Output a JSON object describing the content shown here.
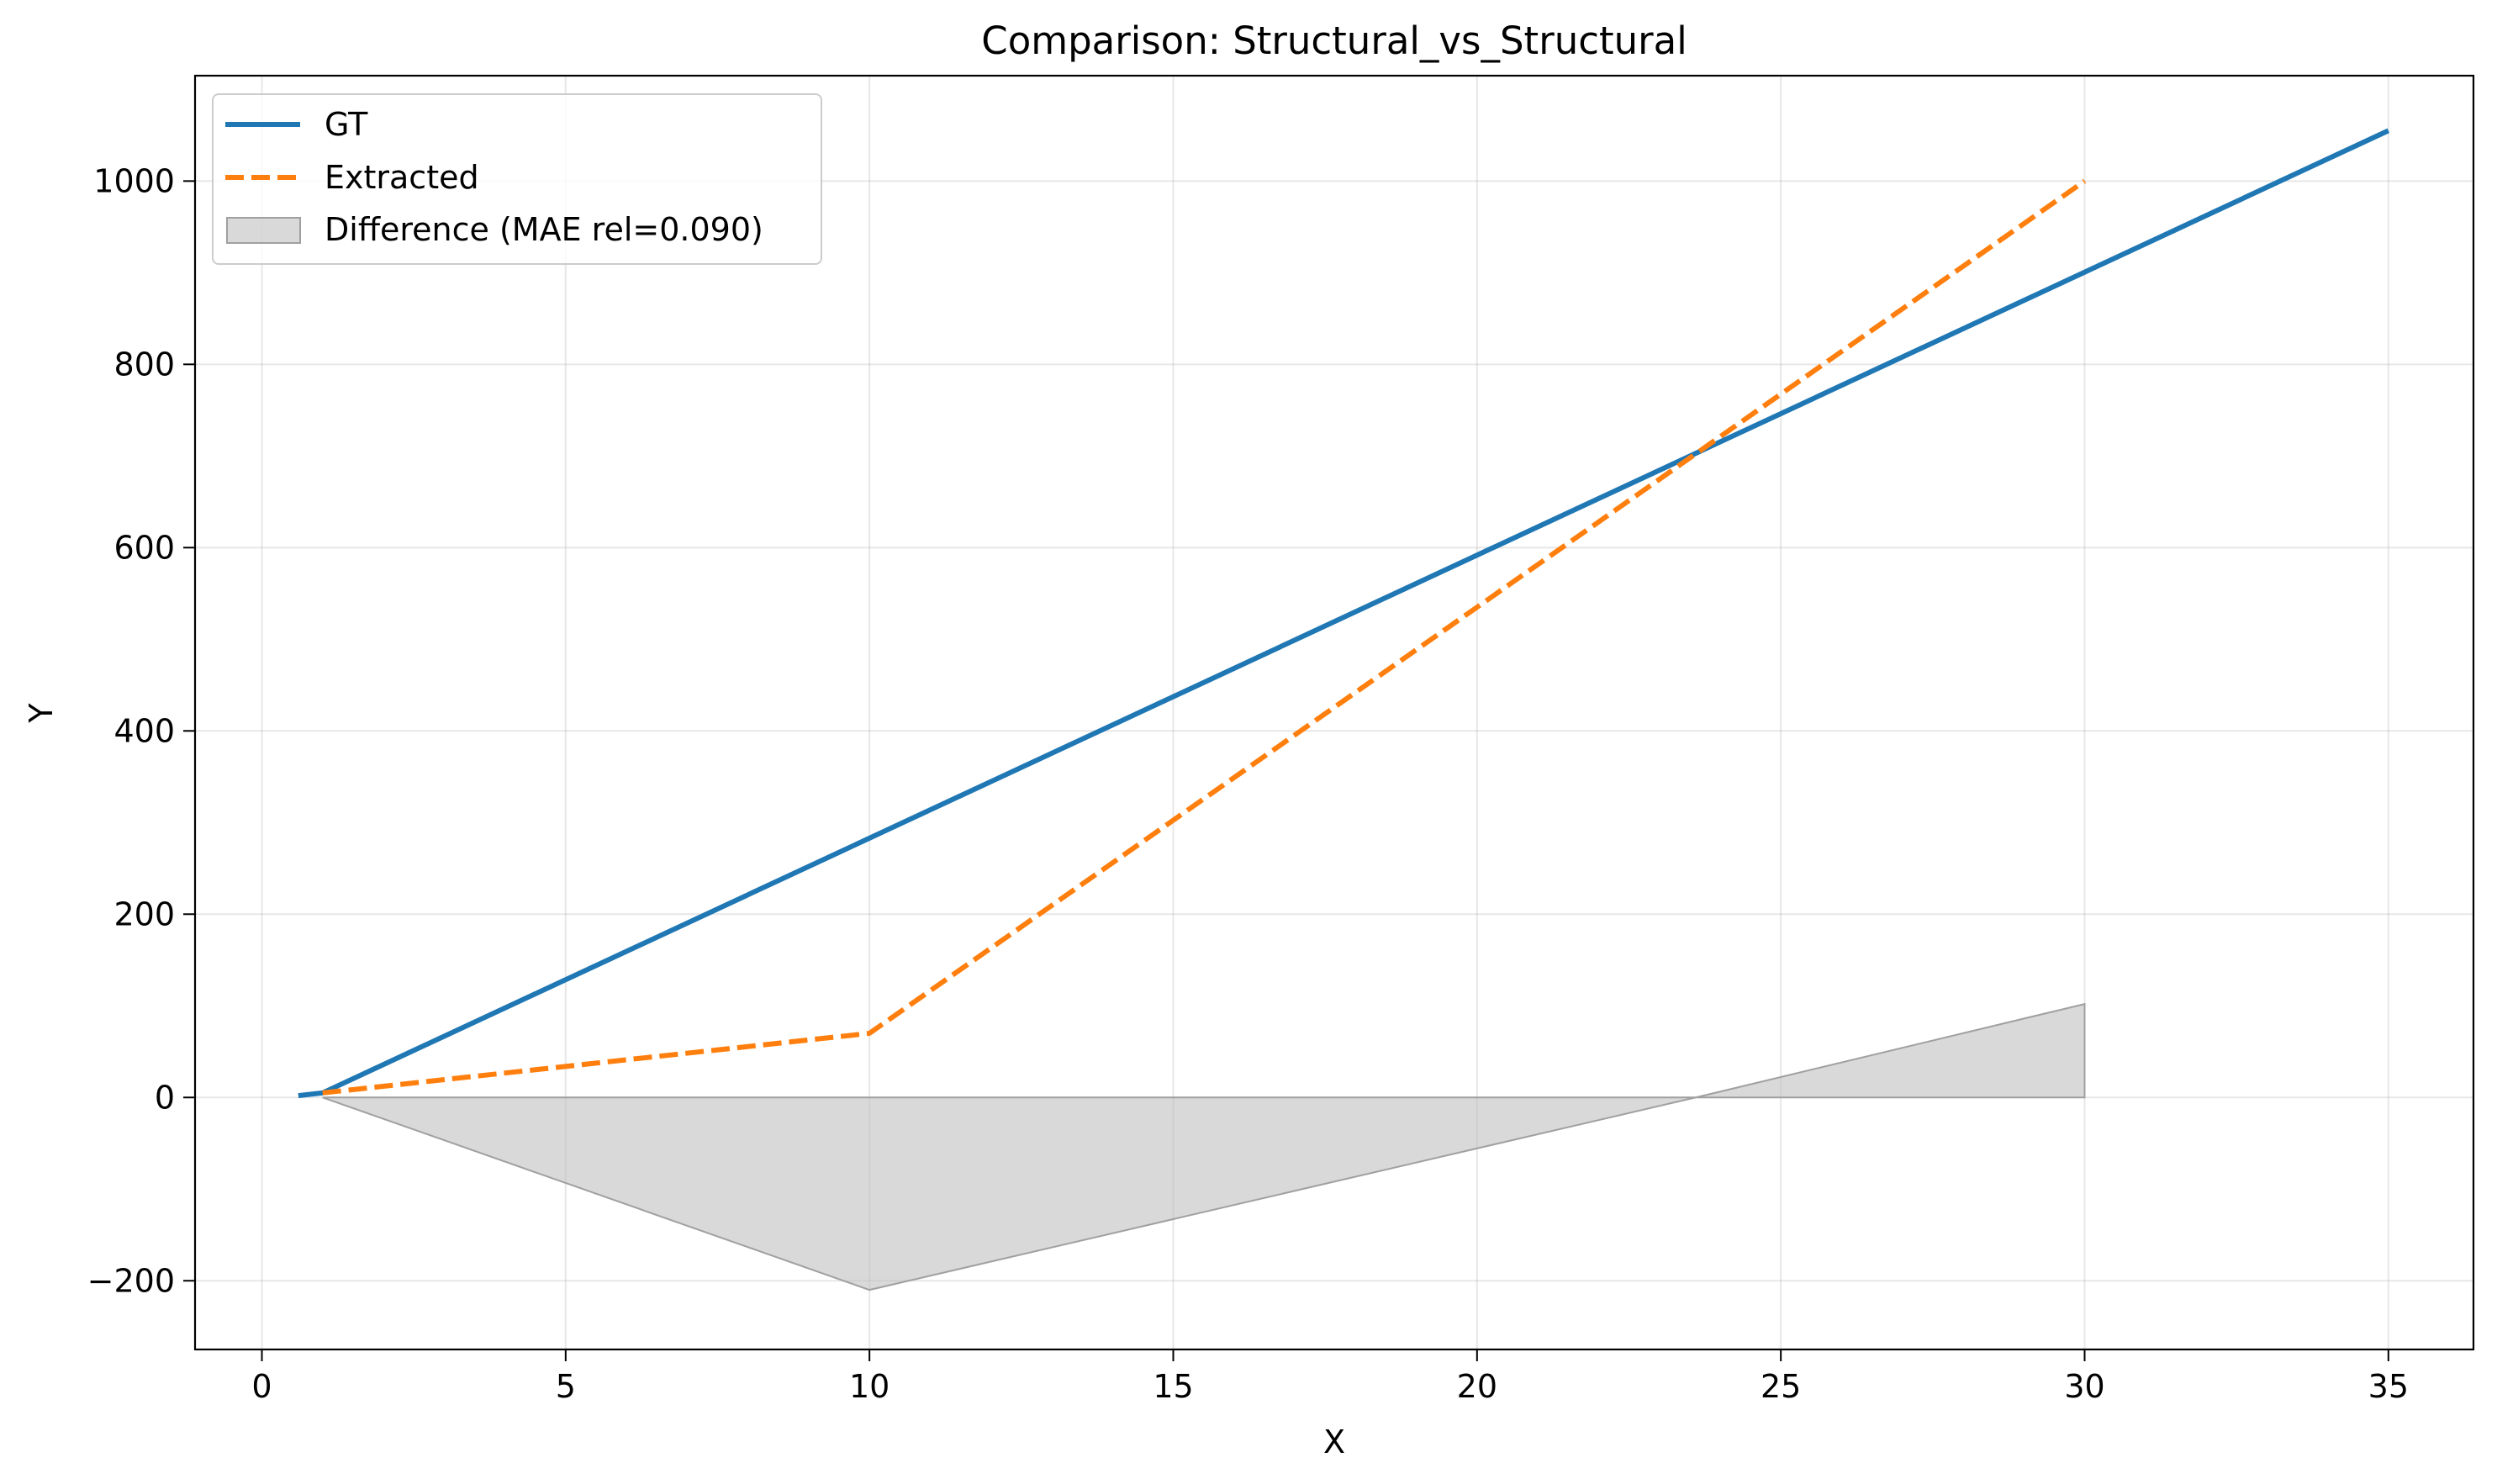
{
  "chart_data": {
    "type": "line",
    "title": "Comparison: Structural_vs_Structural",
    "xlabel": "X",
    "ylabel": "Y",
    "xlim": [
      -1.1,
      36.4
    ],
    "ylim": [
      -275,
      1115
    ],
    "xticks": [
      0,
      5,
      10,
      15,
      20,
      25,
      30,
      35
    ],
    "xtick_labels": [
      "0",
      "5",
      "10",
      "15",
      "20",
      "25",
      "30",
      "35"
    ],
    "yticks": [
      -200,
      0,
      200,
      400,
      600,
      800,
      1000
    ],
    "ytick_labels": [
      "−200",
      "0",
      "200",
      "400",
      "600",
      "800",
      "1000"
    ],
    "grid": true,
    "legend_position": "top-left",
    "series": [
      {
        "name": "GT",
        "style": "solid",
        "color": "#1f77b4",
        "x": [
          0.6,
          1.0,
          35.0
        ],
        "y": [
          2,
          5,
          1055
        ]
      },
      {
        "name": "Extracted",
        "style": "dashed",
        "color": "#ff7f0e",
        "x": [
          1.0,
          10.0,
          30.0
        ],
        "y": [
          5,
          70,
          1000
        ]
      }
    ],
    "fill": {
      "name": "Difference (MAE rel=0.090)",
      "color": "#bfbfbf",
      "x": [
        1.0,
        10.0,
        23.6,
        30.0
      ],
      "y": [
        0,
        -210,
        0,
        102
      ]
    }
  }
}
